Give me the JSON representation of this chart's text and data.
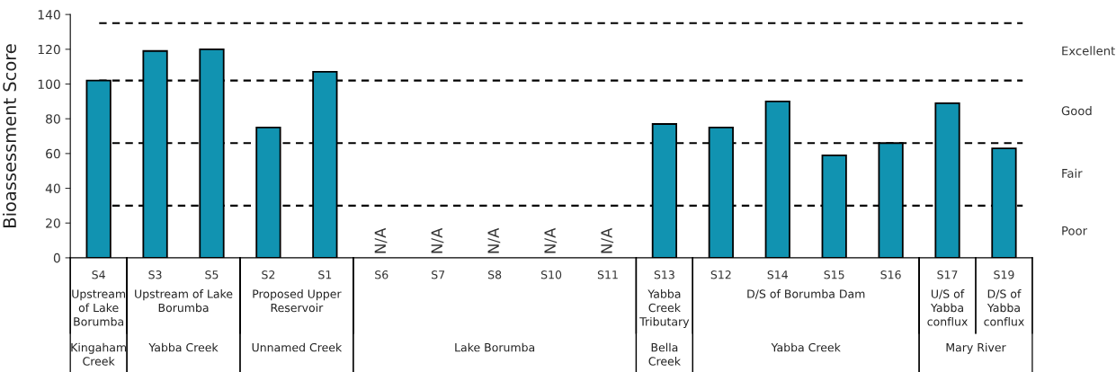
{
  "chart_data": {
    "type": "bar",
    "ylabel": "Bioassessment Score",
    "categories": [
      "S4",
      "S3",
      "S5",
      "S2",
      "S1",
      "S6",
      "S7",
      "S8",
      "S10",
      "S11",
      "S13",
      "S12",
      "S14",
      "S15",
      "S16",
      "S17",
      "S19"
    ],
    "values": [
      102,
      119,
      120,
      75,
      107,
      null,
      null,
      null,
      null,
      null,
      77,
      75,
      90,
      59,
      66,
      89,
      63
    ],
    "value_labels": [
      null,
      null,
      null,
      null,
      null,
      "N/A",
      "N/A",
      "N/A",
      "N/A",
      "N/A",
      null,
      null,
      null,
      null,
      null,
      null,
      null
    ],
    "color": "#1193b1",
    "ylim": [
      0,
      140
    ],
    "yticks": [
      0,
      20,
      40,
      60,
      80,
      100,
      120,
      140
    ],
    "grid": false,
    "ref_lines": [
      {
        "axis": "y",
        "value": 30,
        "line_style": "dashed",
        "color": "#000000"
      },
      {
        "axis": "y",
        "value": 66,
        "line_style": "dashed",
        "color": "#000000"
      },
      {
        "axis": "y",
        "value": 102,
        "line_style": "dashed",
        "color": "#000000"
      },
      {
        "axis": "y",
        "value": 135,
        "line_style": "dashed",
        "color": "#000000"
      }
    ],
    "annotations": [
      "Poor",
      "Fair",
      "Good",
      "Excellent",
      "Upstream\nof Lake\nBorumba",
      "Upstream of Lake\nBorumba",
      "Proposed Upper\nReservoir",
      "Yabba\nCreek\nTributary",
      "D/S of Borumba Dam",
      "U/S of\nYabba\nconflux",
      "D/S of\nYabba\nconflux",
      "Kingaham\nCreek",
      "Yabba Creek",
      "Unnamed Creek",
      "Lake Borumba",
      "Bella\nCreek",
      "Yabba Creek",
      "Mary River"
    ]
  }
}
